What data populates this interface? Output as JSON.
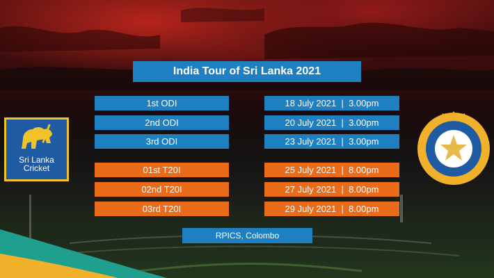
{
  "header": {
    "title": "India Tour of Sri Lanka 2021"
  },
  "odi": [
    {
      "match": "1st ODI",
      "schedule": "18 July 2021  |  3.00pm"
    },
    {
      "match": "2nd ODI",
      "schedule": "20 July 2021  |  3.00pm"
    },
    {
      "match": "3rd ODI",
      "schedule": "23 July 2021  |  3.00pm"
    }
  ],
  "t20i": [
    {
      "match": "01st T20I",
      "schedule": "25 July 2021  |  8.00pm"
    },
    {
      "match": "02nd T20I",
      "schedule": "27 July 2021  |  8.00pm"
    },
    {
      "match": "03rd T20I",
      "schedule": "29 July 2021  |  8.00pm"
    }
  ],
  "venue": "RPICS, Colombo",
  "logos": {
    "sri_lanka": {
      "line1": "Sri Lanka",
      "line2": "Cricket"
    },
    "bcci": {
      "icon": "bcci-star-emblem"
    }
  },
  "colors": {
    "blue": "#1e7fc1",
    "orange": "#ea6b1a",
    "gold": "#f2c22a"
  }
}
